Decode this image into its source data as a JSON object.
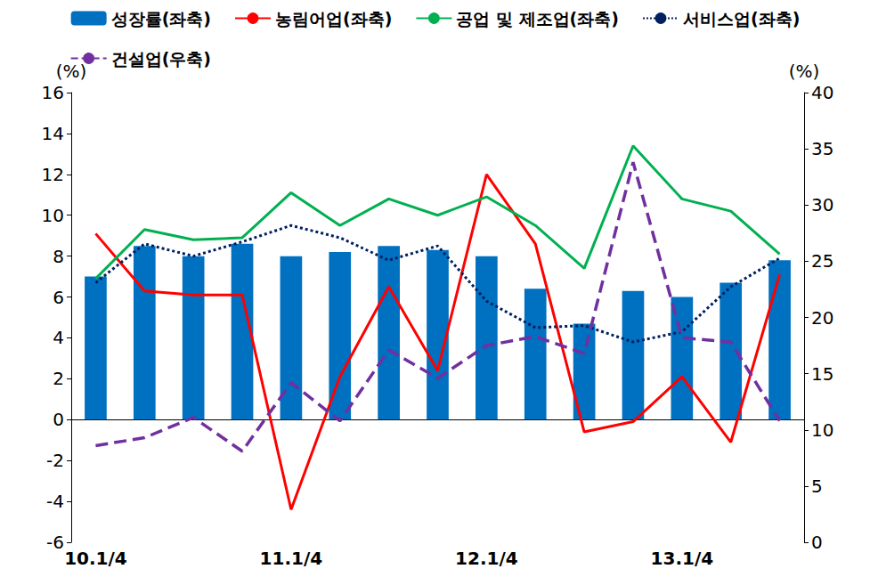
{
  "chart_data": {
    "type": "bar",
    "categories": [
      "10.1/4",
      null,
      null,
      null,
      "11.1/4",
      null,
      null,
      null,
      "12.1/4",
      null,
      null,
      null,
      "13.1/4",
      null,
      null
    ],
    "y_label": "(%)",
    "y2_label": "(%)",
    "ylim": [
      -6,
      16
    ],
    "yticks": [
      -6,
      -4,
      -2,
      0,
      2,
      4,
      6,
      8,
      10,
      12,
      14,
      16
    ],
    "y2lim": [
      0,
      40
    ],
    "y2ticks": [
      0,
      5,
      10,
      15,
      20,
      25,
      30,
      35,
      40
    ],
    "grid": false,
    "legend": "top",
    "series": [
      {
        "name": "성장률(좌축)",
        "type": "bar",
        "color": "#0070C0",
        "values": [
          7.0,
          8.5,
          8.0,
          8.6,
          8.0,
          8.2,
          8.5,
          8.3,
          8.0,
          6.4,
          4.7,
          6.3,
          6.0,
          6.7,
          7.8
        ]
      },
      {
        "name": "농림어업(좌축)",
        "type": "line",
        "color": "#FF0000",
        "line_style": "solid",
        "marker": "none",
        "values": [
          9.1,
          6.3,
          6.1,
          6.1,
          -4.4,
          2.1,
          6.5,
          2.4,
          12.0,
          8.6,
          -0.6,
          -0.1,
          2.1,
          -1.1,
          7.1
        ]
      },
      {
        "name": "공업 및 제조업(좌축)",
        "type": "line",
        "color": "#00B050",
        "line_style": "solid",
        "marker": "none",
        "values": [
          6.9,
          9.3,
          8.8,
          8.9,
          11.1,
          9.5,
          10.8,
          10.0,
          10.9,
          9.5,
          7.4,
          13.4,
          10.8,
          10.2,
          8.1
        ]
      },
      {
        "name": "서비스업(좌축)",
        "type": "line",
        "color": "#002060",
        "line_style": "dotted",
        "marker": "none",
        "values": [
          6.7,
          8.6,
          8.0,
          8.7,
          9.5,
          8.9,
          7.8,
          8.5,
          5.8,
          4.5,
          4.6,
          3.8,
          4.3,
          6.5,
          7.9
        ]
      },
      {
        "name": "건설업(우축)",
        "type": "line",
        "color": "#7030A0",
        "line_style": "dashed",
        "marker": "none",
        "axis": "y2",
        "values": [
          8.6,
          9.3,
          11.1,
          8.1,
          14.2,
          10.8,
          17.1,
          14.6,
          17.5,
          18.3,
          16.8,
          33.8,
          18.2,
          17.8,
          10.8
        ]
      }
    ]
  }
}
